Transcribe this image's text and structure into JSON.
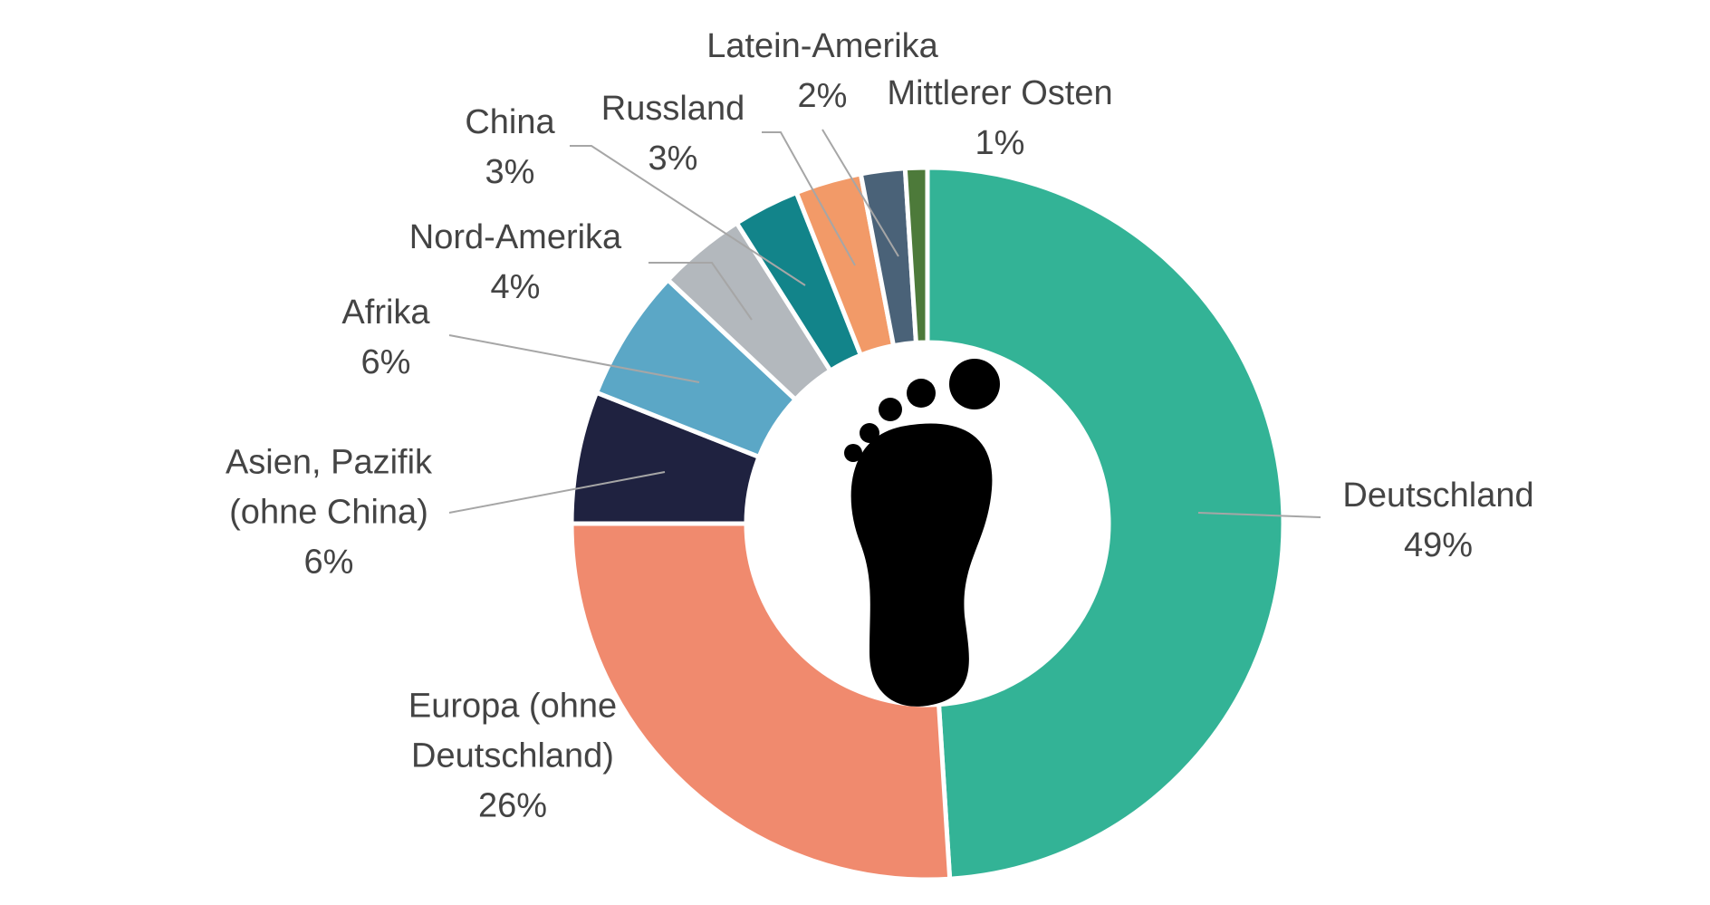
{
  "chart_data": {
    "type": "donut",
    "categories": [
      "Deutschland",
      "Europa (ohne Deutschland)",
      "Asien, Pazifik (ohne China)",
      "Afrika",
      "Nord-Amerika",
      "China",
      "Russland",
      "Latein-Amerika",
      "Mittlerer Osten"
    ],
    "values": [
      49,
      26,
      6,
      6,
      4,
      3,
      3,
      2,
      1
    ],
    "value_labels": [
      "49%",
      "26%",
      "6%",
      "6%",
      "4%",
      "3%",
      "3%",
      "2%",
      "1%"
    ],
    "colors": [
      "#33b396",
      "#f08a6e",
      "#1f2240",
      "#5ba7c6",
      "#b3b8bd",
      "#12848a",
      "#f29a68",
      "#4a6278",
      "#4d7a3a"
    ]
  }
}
